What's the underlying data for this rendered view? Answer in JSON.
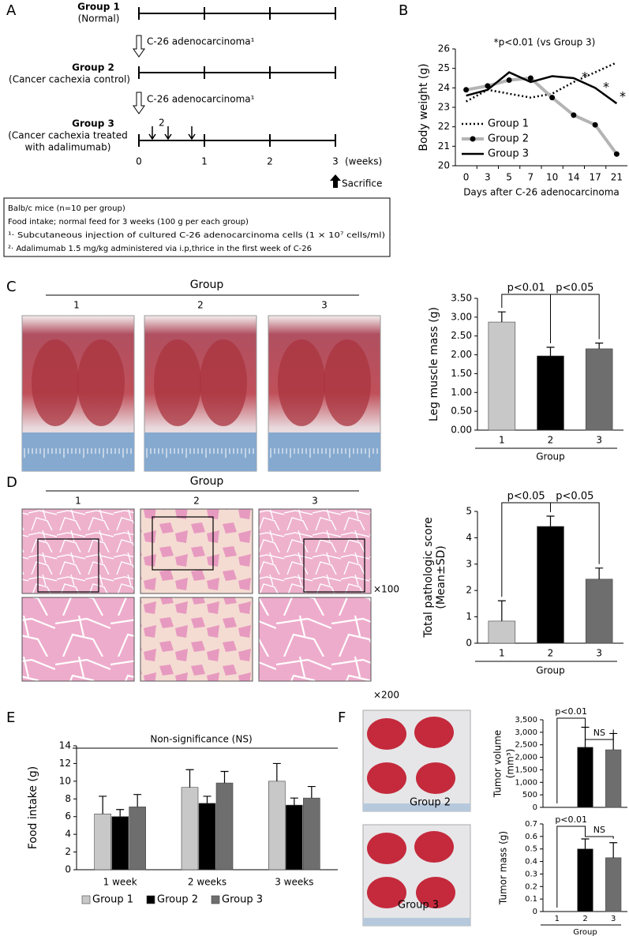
{
  "panel_labels": [
    "A",
    "B",
    "C",
    "D",
    "E",
    "F"
  ],
  "schedule": {
    "groups": [
      {
        "name": "Group 1",
        "desc": [
          "(Normal)"
        ]
      },
      {
        "name": "Group 2",
        "desc": [
          "(Cancer cachexia control)"
        ]
      },
      {
        "name": "Group 3",
        "desc": [
          "(Cancer cachexia treated",
          "with adalimumab)"
        ]
      }
    ],
    "inoculation": [
      "C-26 adenocarcinoma¹",
      "C-26 adenocarcinoma¹"
    ],
    "dose_mark": "2",
    "weeks": [
      "0",
      "1",
      "2",
      "3"
    ],
    "unit": "(weeks)",
    "endpoint": "Sacrifice",
    "notes": [
      "Balb/c mice (n=10 per group)",
      "Food intake; normal feed for 3 weeks (100 g per each group)",
      "¹· Subcutaneous injection of cultured C-26 adenocarcinoma cells (1 × 10⁷ cells/ml)",
      "²· Adalimumab 1.5 mg/kg administered via i.p,thrice in the first week of C-26"
    ]
  },
  "muscle_photos": {
    "title": "Group",
    "groups": [
      "1",
      "2",
      "3"
    ]
  },
  "histology": {
    "title": "Group",
    "groups": [
      "1",
      "2",
      "3"
    ],
    "magnifications": [
      "×100",
      "×200"
    ]
  },
  "tumor_photos": [
    "Group 2",
    "Group 3"
  ],
  "chart_data": [
    {
      "type": "line",
      "note": "*p<0.01 (vs Group 3)",
      "y_label": [
        "Body weight (g)"
      ],
      "x_label": "Days after C-26 adenocarcinoma",
      "categories": [
        "0",
        "3",
        "5",
        "7",
        "10",
        "14",
        "17",
        "21"
      ],
      "series": [
        {
          "name": "Group 1",
          "color": "#000000",
          "line_style": "dotted",
          "marker": false,
          "values": [
            23.3,
            23.9,
            23.7,
            23.5,
            23.7,
            24.3,
            24.8,
            25.3
          ]
        },
        {
          "name": "Group 2",
          "color": "#b4b4b4",
          "line_style": "solid",
          "marker": true,
          "values": [
            23.9,
            24.1,
            24.4,
            24.5,
            23.5,
            22.6,
            22.1,
            20.6
          ]
        },
        {
          "name": "Group 3",
          "color": "#000000",
          "line_style": "solid",
          "marker": false,
          "values": [
            23.6,
            23.9,
            24.8,
            24.3,
            24.6,
            24.5,
            24.0,
            23.2
          ]
        }
      ],
      "ylim": [
        20,
        26
      ],
      "yticks": [
        20,
        21,
        22,
        23,
        24,
        25,
        26
      ],
      "significance_marks": [
        "*",
        "*",
        "*"
      ],
      "legend": "lower-left"
    },
    {
      "type": "bar",
      "y_label": [
        "Leg muscle mass (g)"
      ],
      "x_label": "Group",
      "categories": [
        "1",
        "2",
        "3"
      ],
      "values": [
        2.87,
        1.97,
        2.16
      ],
      "errors": [
        0.27,
        0.23,
        0.15
      ],
      "colors": [
        "#c8c8c8",
        "#000000",
        "#6e6e6e"
      ],
      "ylim": [
        0,
        3.5
      ],
      "yticks": [
        {
          "value": 0,
          "label": "0.00"
        },
        {
          "value": 0.5,
          "label": "0.50"
        },
        {
          "value": 1,
          "label": "1.00"
        },
        {
          "value": 1.5,
          "label": "1.50"
        },
        {
          "value": 2,
          "label": "2.00"
        },
        {
          "value": 2.5,
          "label": "2.50"
        },
        {
          "value": 3,
          "label": "3.00"
        },
        {
          "value": 3.5,
          "label": "3.50"
        }
      ],
      "significance": [
        "p<0.01",
        "p<0.05"
      ]
    },
    {
      "type": "bar",
      "y_label": [
        "Total pathologic score",
        "(Mean±SD)"
      ],
      "x_label": "Group",
      "categories": [
        "1",
        "2",
        "3"
      ],
      "values": [
        0.84,
        4.43,
        2.43
      ],
      "errors": [
        0.77,
        0.39,
        0.42
      ],
      "colors": [
        "#c8c8c8",
        "#000000",
        "#6e6e6e"
      ],
      "ylim": [
        0,
        5
      ],
      "yticks": [
        0,
        1,
        2,
        3,
        4,
        5
      ],
      "significance": [
        "p<0.05",
        "p<0.05"
      ]
    },
    {
      "type": "bar",
      "y_label": [
        "Food intake (g)"
      ],
      "categories": [
        "1 week",
        "2 weeks",
        "3 weeks"
      ],
      "series": [
        {
          "name": "Group 1",
          "color": "#c8c8c8",
          "values": [
            6.3,
            9.3,
            10.0
          ],
          "errors": [
            2.0,
            2.0,
            2.0
          ]
        },
        {
          "name": "Group 2",
          "color": "#000000",
          "values": [
            6.0,
            7.5,
            7.3
          ],
          "errors": [
            0.8,
            0.8,
            0.8
          ]
        },
        {
          "name": "Group 3",
          "color": "#6e6e6e",
          "values": [
            7.1,
            9.8,
            8.1
          ],
          "errors": [
            1.4,
            1.3,
            1.3
          ]
        }
      ],
      "ylim": [
        0,
        14
      ],
      "yticks": [
        0,
        2,
        4,
        6,
        8,
        10,
        12,
        14
      ],
      "annotation": "Non-significance (NS)",
      "legend": "bottom"
    },
    {
      "type": "bar",
      "y_label": [
        "Tumor volume",
        "(mm³)"
      ],
      "categories": [
        null,
        null,
        null
      ],
      "values": [
        0,
        2400,
        2300
      ],
      "errors": [
        null,
        800,
        650
      ],
      "colors": [
        "#c8c8c8",
        "#000000",
        "#6e6e6e"
      ],
      "ylim": [
        0,
        3500
      ],
      "yticks": [
        0,
        500,
        {
          "value": 1000,
          "label": "1,000"
        },
        {
          "value": 1500,
          "label": "1,500"
        },
        {
          "value": 2000,
          "label": "2,000"
        },
        {
          "value": 2500,
          "label": "2,500"
        },
        {
          "value": 3000,
          "label": "3,000"
        },
        {
          "value": 3500,
          "label": "3,500"
        }
      ],
      "significance": [
        "p<0.01",
        "NS"
      ]
    },
    {
      "type": "bar",
      "y_label": [
        "Tumor mass (g)"
      ],
      "x_label": "Group",
      "categories": [
        "1",
        "2",
        "3"
      ],
      "values": [
        0,
        0.5,
        0.43
      ],
      "errors": [
        null,
        0.08,
        0.12
      ],
      "colors": [
        "#c8c8c8",
        "#000000",
        "#6e6e6e"
      ],
      "ylim": [
        0,
        0.7
      ],
      "yticks": [
        0,
        0.1,
        0.2,
        0.3,
        0.4,
        0.5,
        0.6,
        0.7
      ],
      "significance": [
        "p<0.01",
        "NS"
      ]
    }
  ]
}
